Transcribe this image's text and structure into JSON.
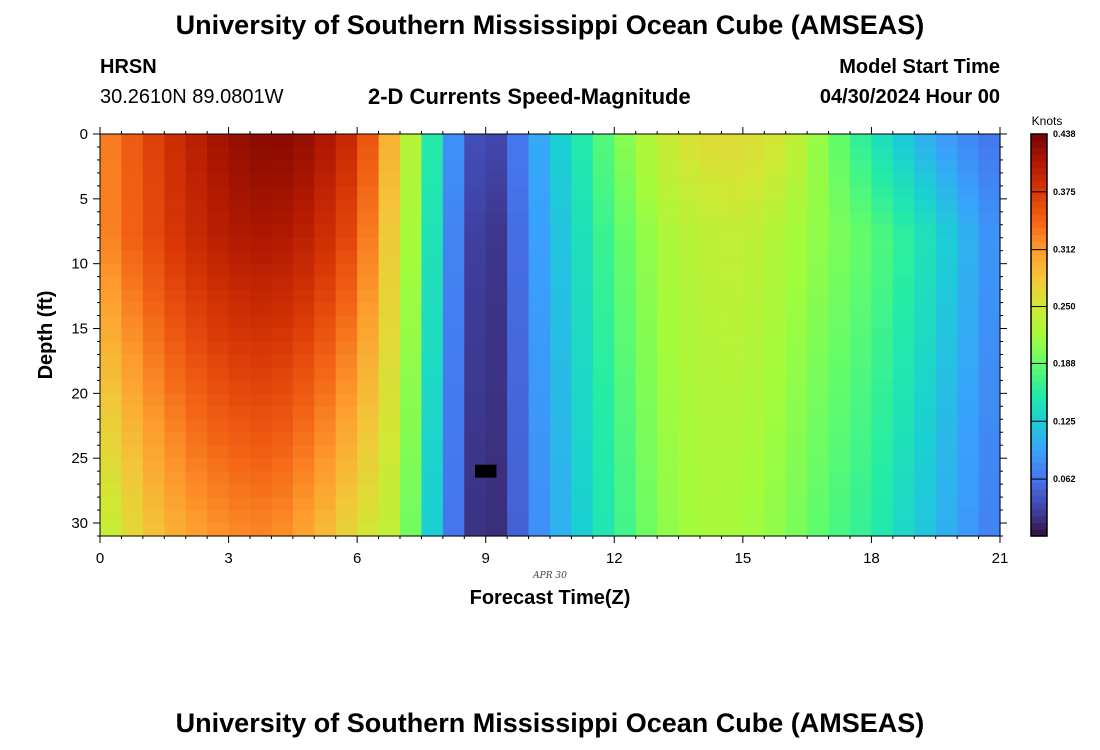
{
  "header": {
    "title": "University of Southern Mississippi Ocean Cube (AMSEAS)",
    "station": "HRSN",
    "coordinates": "30.2610N  89.0801W",
    "subtitle": "2-D Currents Speed-Magnitude",
    "model_start_label": "Model Start Time",
    "model_start_value": "04/30/2024 Hour 00"
  },
  "footer": {
    "title": "University of Southern Mississippi Ocean Cube (AMSEAS)"
  },
  "chart_data": {
    "type": "heatmap",
    "title": "2-D Currents Speed-Magnitude",
    "xlabel": "Forecast Time(Z)",
    "ylabel": "Depth (ft)",
    "date_label": "APR 30",
    "xlim": [
      0,
      21
    ],
    "ylim": [
      31,
      0
    ],
    "x_ticks": [
      0,
      3,
      6,
      9,
      12,
      15,
      18,
      21
    ],
    "y_ticks": [
      0,
      5,
      10,
      15,
      20,
      25,
      30
    ],
    "x_step_hours": 0.5,
    "depth_step_ft": 1,
    "colorbar": {
      "title": "Knots",
      "min": 0.0,
      "max": 0.438,
      "ticks": [
        "0.438",
        "0.375",
        "0.312",
        "0.250",
        "0.188",
        "0.125",
        "0.062"
      ]
    },
    "colormap": [
      "#30123b",
      "#4145ab",
      "#4675ed",
      "#39a2fc",
      "#1bcfd4",
      "#24eca6",
      "#61fc6c",
      "#a4fc3b",
      "#d1e834",
      "#f3c63a",
      "#fe9b2d",
      "#f36315",
      "#d93806",
      "#b11901",
      "#7a0402"
    ],
    "column_profile": [
      {
        "hour": 0,
        "surface": 0.32,
        "mid": 0.318,
        "bottom": 0.23
      },
      {
        "hour": 1,
        "surface": 0.36,
        "mid": 0.355,
        "bottom": 0.275
      },
      {
        "hour": 2,
        "surface": 0.395,
        "mid": 0.385,
        "bottom": 0.305
      },
      {
        "hour": 3,
        "surface": 0.42,
        "mid": 0.405,
        "bottom": 0.32
      },
      {
        "hour": 4,
        "surface": 0.432,
        "mid": 0.41,
        "bottom": 0.325
      },
      {
        "hour": 5,
        "surface": 0.42,
        "mid": 0.395,
        "bottom": 0.3
      },
      {
        "hour": 6,
        "surface": 0.38,
        "mid": 0.355,
        "bottom": 0.26
      },
      {
        "hour": 6.5,
        "surface": 0.33,
        "mid": 0.305,
        "bottom": 0.245
      },
      {
        "hour": 7,
        "surface": 0.265,
        "mid": 0.25,
        "bottom": 0.23
      },
      {
        "hour": 7.5,
        "surface": 0.2,
        "mid": 0.19,
        "bottom": 0.16
      },
      {
        "hour": 8,
        "surface": 0.11,
        "mid": 0.1,
        "bottom": 0.09
      },
      {
        "hour": 8.5,
        "surface": 0.055,
        "mid": 0.045,
        "bottom": 0.035
      },
      {
        "hour": 9,
        "surface": 0.02,
        "mid": 0.01,
        "bottom": 0.005
      },
      {
        "hour": 9.5,
        "surface": 0.045,
        "mid": 0.035,
        "bottom": 0.03
      },
      {
        "hour": 10,
        "surface": 0.085,
        "mid": 0.08,
        "bottom": 0.07
      },
      {
        "hour": 11,
        "surface": 0.14,
        "mid": 0.13,
        "bottom": 0.115
      },
      {
        "hour": 12,
        "surface": 0.195,
        "mid": 0.18,
        "bottom": 0.16
      },
      {
        "hour": 13,
        "surface": 0.24,
        "mid": 0.22,
        "bottom": 0.205
      },
      {
        "hour": 14,
        "surface": 0.262,
        "mid": 0.235,
        "bottom": 0.222
      },
      {
        "hour": 15,
        "surface": 0.265,
        "mid": 0.24,
        "bottom": 0.22
      },
      {
        "hour": 16,
        "surface": 0.25,
        "mid": 0.225,
        "bottom": 0.205
      },
      {
        "hour": 17,
        "surface": 0.2,
        "mid": 0.205,
        "bottom": 0.18
      },
      {
        "hour": 18,
        "surface": 0.15,
        "mid": 0.185,
        "bottom": 0.16
      },
      {
        "hour": 19,
        "surface": 0.11,
        "mid": 0.155,
        "bottom": 0.125
      },
      {
        "hour": 20,
        "surface": 0.08,
        "mid": 0.115,
        "bottom": 0.095
      },
      {
        "hour": 21,
        "surface": 0.06,
        "mid": 0.075,
        "bottom": 0.065
      }
    ],
    "anomaly": {
      "hour": 9,
      "depth_ft": 26,
      "label": "missing"
    }
  }
}
